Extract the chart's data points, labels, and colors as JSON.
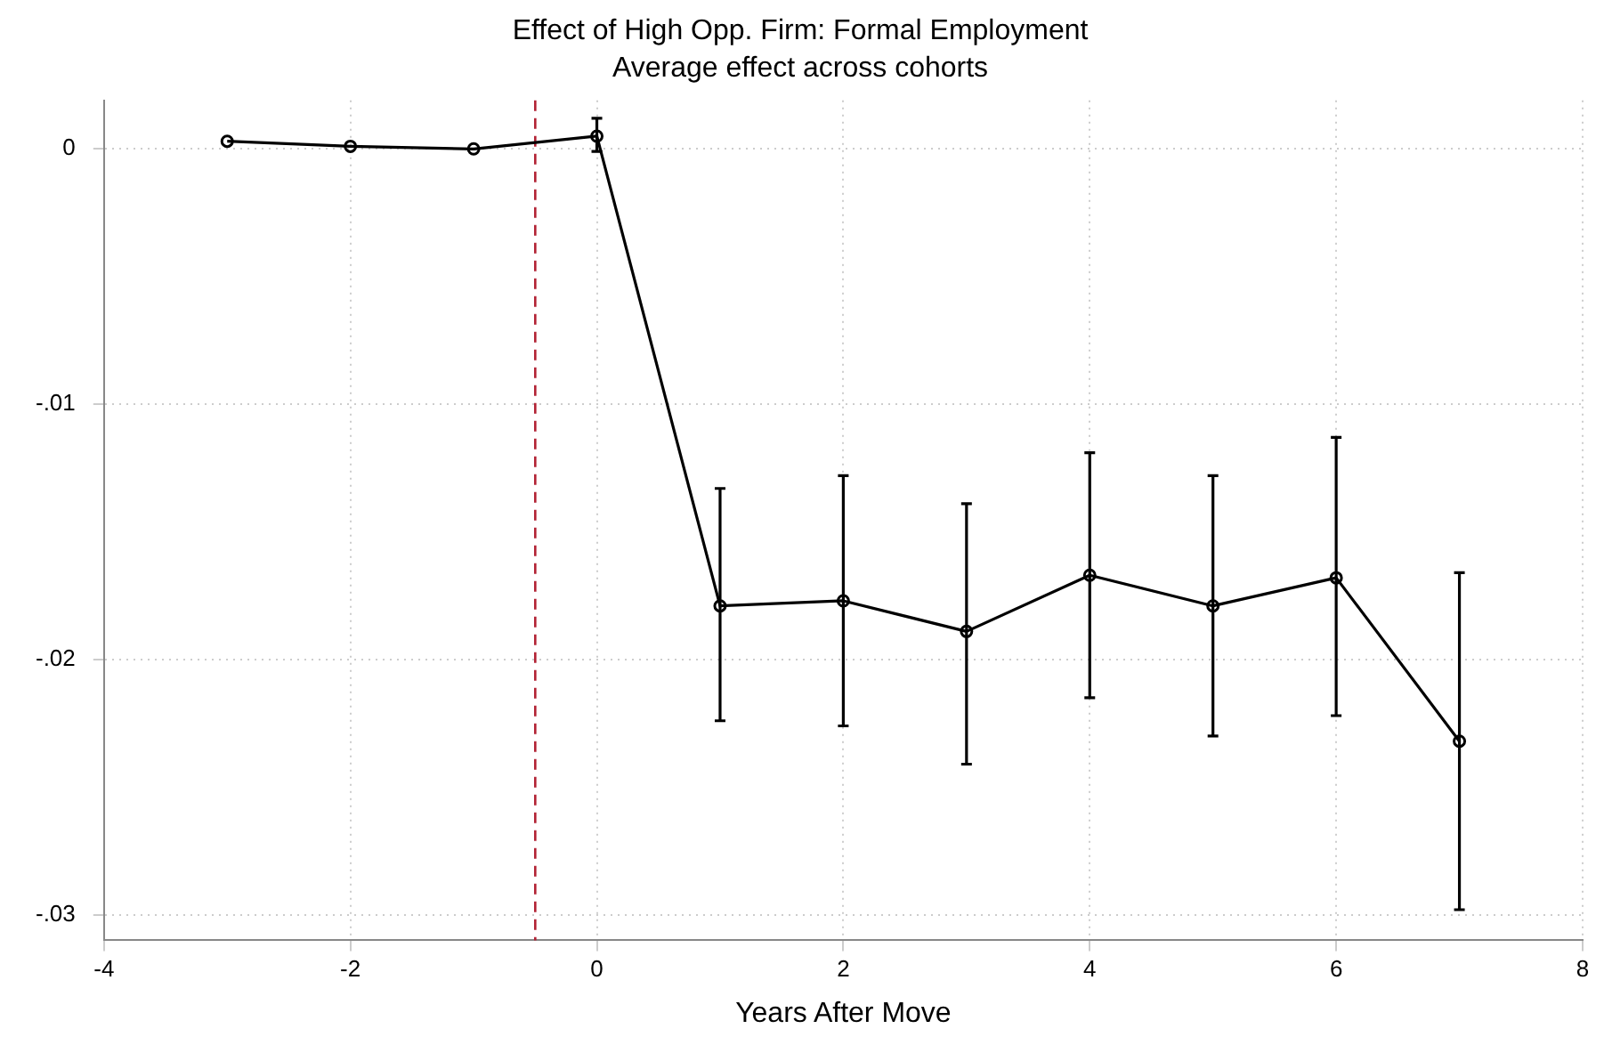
{
  "chart_data": {
    "type": "line",
    "title": "Effect of High Opp. Firm: Formal Employment",
    "subtitle": "Average effect across cohorts",
    "xlabel": "Years After Move",
    "x": [
      -3,
      -2,
      -1,
      0,
      1,
      2,
      3,
      4,
      5,
      6,
      7
    ],
    "series": [
      {
        "color": "#000000",
        "values": [
          0.0003,
          0.0001,
          0.0,
          0.0005,
          -0.0179,
          -0.0177,
          -0.0189,
          -0.0167,
          -0.0179,
          -0.0168,
          -0.0232
        ],
        "errors": [
          null,
          null,
          null,
          [
            -0.0001,
            0.0012
          ],
          [
            -0.0224,
            -0.0133
          ],
          [
            -0.0226,
            -0.0128
          ],
          [
            -0.0241,
            -0.0139
          ],
          [
            -0.0215,
            -0.0119
          ],
          [
            -0.023,
            -0.0128
          ],
          [
            -0.0222,
            -0.0113
          ],
          [
            -0.0298,
            -0.0166
          ]
        ]
      }
    ],
    "xlim": [
      -4,
      8
    ],
    "xticks": [
      -4,
      -2,
      0,
      2,
      4,
      6,
      8
    ],
    "ylim": [
      -0.031,
      0.0019
    ],
    "yticks": [
      {
        "value": -0.03,
        "label": "-.03"
      },
      {
        "value": -0.02,
        "label": "-.02"
      },
      {
        "value": -0.01,
        "label": "-.01"
      },
      0
    ],
    "ref_lines": [
      {
        "axis": "x",
        "value": -0.5,
        "color": "#b22234",
        "line_style": "dashed"
      }
    ],
    "grid": true,
    "legend": false,
    "marker": "circle",
    "line_style": "solid"
  }
}
